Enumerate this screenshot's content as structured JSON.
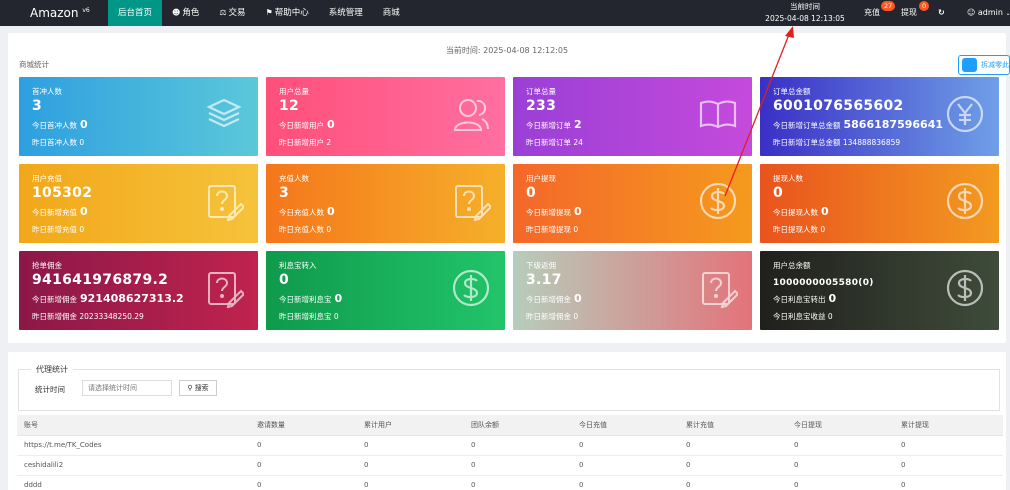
{
  "topbar": {
    "logo": "Amazon",
    "logo_version": "v6",
    "nav": [
      {
        "label": "后台首页",
        "icon": ""
      },
      {
        "label": "角色",
        "icon": "user-icon"
      },
      {
        "label": "交易",
        "icon": "scale-icon"
      },
      {
        "label": "帮助中心",
        "icon": "flag-icon"
      },
      {
        "label": "系统管理",
        "icon": ""
      },
      {
        "label": "商城",
        "icon": ""
      }
    ],
    "time_label": "当前时间",
    "time_value": "2025-04-08 12:13:05",
    "recharge_label": "充值",
    "recharge_badge": "27",
    "withdraw_label": "提现",
    "withdraw_badge": "0",
    "refresh_icon": "refresh-icon",
    "user": "admin"
  },
  "panel": {
    "current_time": "当前时间:  2025-04-08 12:12:05",
    "title": "商城统计",
    "share_button": "拆减零此上"
  },
  "cards": [
    {
      "title": "首冲人数",
      "value": "3",
      "line1_label": "今日首冲人数",
      "line1_value": "0",
      "line2": "昨日首冲人数 0",
      "icon": "layers-icon",
      "color": "#2e9fe0"
    },
    {
      "title": "用户总量",
      "value": "12",
      "line1_label": "今日新增用户",
      "line1_value": "0",
      "line2": "昨日新增用户 2",
      "icon": "users-icon",
      "color": "#ff4f7a"
    },
    {
      "title": "订单总量",
      "value": "233",
      "line1_label": "今日新增订单",
      "line1_value": "2",
      "line2": "昨日新增订单 24",
      "icon": "book-icon",
      "color": "#9a3fd6"
    },
    {
      "title": "订单总金额",
      "value": "6001076565602",
      "line1_label": "今日新增订单总金额",
      "line1_value": "5866187596641",
      "line2": "昨日新增订单总金额 134888836859",
      "icon": "yen-icon",
      "color": "#3a2fc6"
    },
    {
      "title": "用户充值",
      "value": "105302",
      "line1_label": "今日新增充值",
      "line1_value": "0",
      "line2": "昨日新增充值 0",
      "icon": "edit-icon",
      "color": "#f2a71a"
    },
    {
      "title": "充值人数",
      "value": "3",
      "line1_label": "今日充值人数",
      "line1_value": "0",
      "line2": "昨日充值人数 0",
      "icon": "edit-icon",
      "color": "#f5761b"
    },
    {
      "title": "用户提现",
      "value": "0",
      "line1_label": "今日新增提现",
      "line1_value": "0",
      "line2": "昨日新增提现 0",
      "icon": "dollar-icon",
      "color": "#f4672a"
    },
    {
      "title": "提现人数",
      "value": "0",
      "line1_label": "今日提现人数",
      "line1_value": "0",
      "line2": "昨日提现人数 0",
      "icon": "dollar-icon",
      "color": "#e9531e"
    },
    {
      "title": "抢单佣金",
      "value": "941641976879.2",
      "line1_label": "今日新增佣金",
      "line1_value": "921408627313.2",
      "line2": "昨日新增佣金 20233348250.29",
      "icon": "edit-icon",
      "color": "#8b1848"
    },
    {
      "title": "利息宝转入",
      "value": "0",
      "line1_label": "今日新增利息宝",
      "line1_value": "0",
      "line2": "昨日新增利息宝 0",
      "icon": "dollar-icon",
      "color": "#0f9a4c"
    },
    {
      "title": "下级返佣",
      "value": "3.17",
      "line1_label": "今日新增佣金",
      "line1_value": "0",
      "line2": "昨日新增佣金 0",
      "icon": "edit-icon",
      "color": "#e3737a"
    },
    {
      "title": "用户总余额",
      "value": "1000000005580(0)",
      "line1_label": "今日利息宝转出",
      "line1_value": "0",
      "line2": "今日利息宝收益 0",
      "icon": "dollar-icon",
      "color": "#201f1c"
    }
  ],
  "agent": {
    "legend": "代理统计",
    "filter_label": "统计时间",
    "filter_placeholder": "请选择统计时间",
    "search_button": "搜索",
    "columns": [
      "账号",
      "邀请数量",
      "累计用户",
      "团队余额",
      "今日充值",
      "累计充值",
      "今日提现",
      "累计提现"
    ],
    "rows": [
      [
        "https://t.me/TK_Codes",
        "0",
        "0",
        "0",
        "0",
        "0",
        "0",
        "0"
      ],
      [
        "ceshidalili2",
        "0",
        "0",
        "0",
        "0",
        "0",
        "0",
        "0"
      ],
      [
        "dddd",
        "0",
        "0",
        "0",
        "0",
        "0",
        "0",
        "0"
      ]
    ]
  },
  "annotation_color": "#e02020"
}
